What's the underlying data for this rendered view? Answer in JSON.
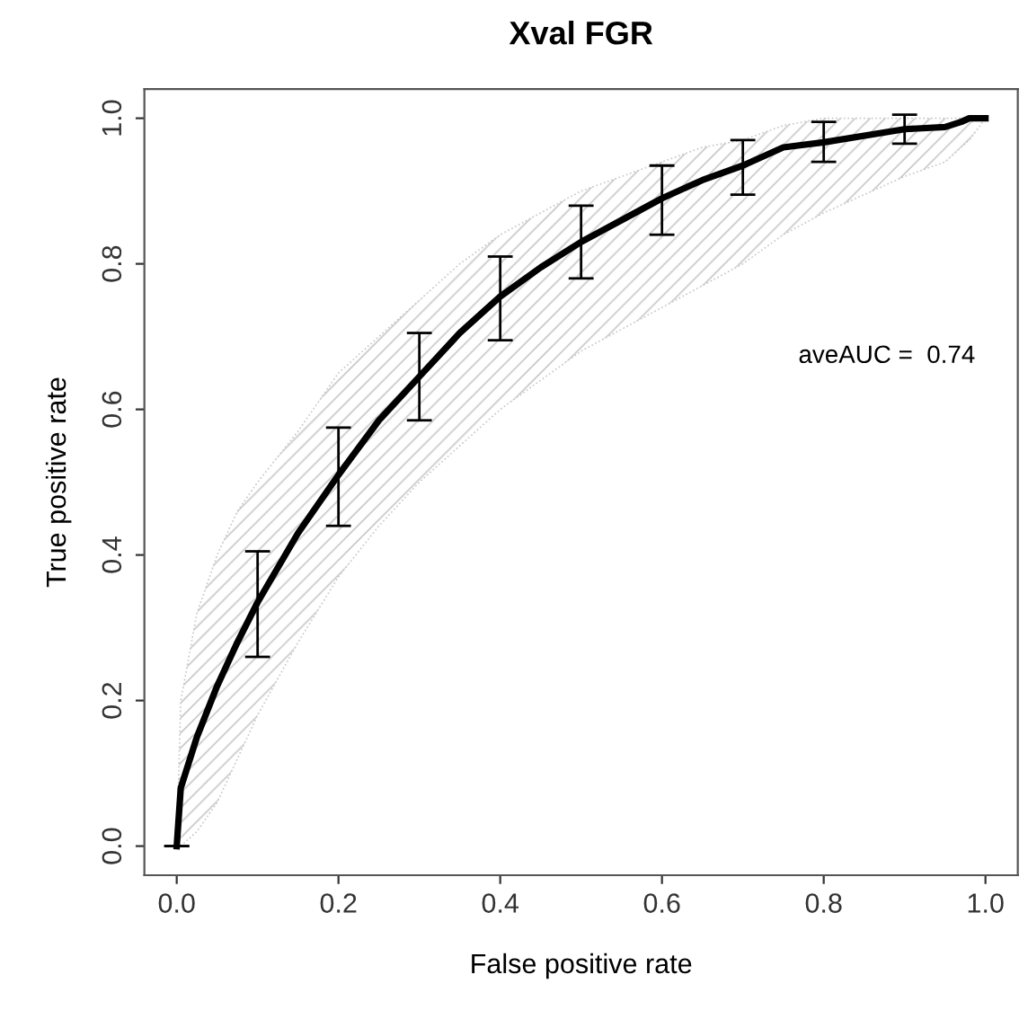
{
  "chart_data": {
    "type": "line",
    "title": "Xval FGR",
    "xlabel": "False positive rate",
    "ylabel": "True positive rate",
    "annotations": [
      "aveAUC =  0.74"
    ],
    "xlim": [
      -0.04,
      1.04
    ],
    "ylim": [
      -0.04,
      1.04
    ],
    "xticks": [
      {
        "value": 0,
        "label": "0.0"
      },
      0.2,
      0.4,
      0.6,
      0.8,
      {
        "value": 1,
        "label": "1.0"
      }
    ],
    "yticks": [
      {
        "value": 0,
        "label": "0.0"
      },
      0.2,
      0.4,
      0.6,
      0.8,
      {
        "value": 1,
        "label": "1.0"
      }
    ],
    "grid": false,
    "legend": false,
    "marker": "none",
    "line_style": "solid",
    "series": [
      {
        "color": "#000000",
        "x": [
          0,
          0.005,
          0.025,
          0.05,
          0.075,
          0.1,
          0.15,
          0.2,
          0.25,
          0.3,
          0.35,
          0.4,
          0.45,
          0.5,
          0.55,
          0.6,
          0.65,
          0.7,
          0.75,
          0.8,
          0.9,
          0.95,
          0.97,
          0.98,
          1.0
        ],
        "values": [
          0,
          0.08,
          0.15,
          0.22,
          0.28,
          0.335,
          0.43,
          0.51,
          0.585,
          0.645,
          0.705,
          0.755,
          0.795,
          0.83,
          0.86,
          0.89,
          0.915,
          0.935,
          0.96,
          0.967,
          0.985,
          0.988,
          0.995,
          1.0,
          1.0
        ],
        "upper": [
          0,
          0.2,
          0.32,
          0.4,
          0.46,
          0.5,
          0.57,
          0.65,
          0.7,
          0.75,
          0.8,
          0.84,
          0.87,
          0.9,
          0.92,
          0.94,
          0.96,
          0.97,
          0.99,
          1.0,
          1.0,
          1.0,
          1.0,
          1.0,
          1.0
        ],
        "lower": [
          0,
          0,
          0.02,
          0.06,
          0.12,
          0.18,
          0.28,
          0.37,
          0.44,
          0.5,
          0.55,
          0.6,
          0.64,
          0.68,
          0.71,
          0.74,
          0.77,
          0.8,
          0.84,
          0.87,
          0.92,
          0.94,
          0.96,
          0.97,
          1.0
        ],
        "errors": [
          [
            0,
            0
          ],
          null,
          null,
          null,
          null,
          [
            0.26,
            0.405
          ],
          null,
          [
            0.44,
            0.575
          ],
          null,
          [
            0.585,
            0.705
          ],
          null,
          [
            0.695,
            0.81
          ],
          null,
          [
            0.78,
            0.88
          ],
          null,
          [
            0.84,
            0.935
          ],
          null,
          [
            0.895,
            0.97
          ],
          null,
          [
            0.94,
            0.995
          ],
          [
            0.965,
            1.005
          ],
          null,
          null,
          null,
          null
        ]
      }
    ]
  }
}
